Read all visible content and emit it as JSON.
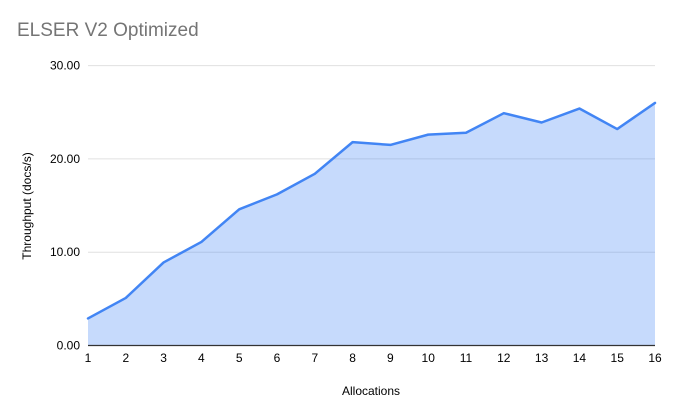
{
  "window": {
    "background": "#ffffff"
  },
  "chart_data": {
    "type": "area",
    "title": "ELSER V2 Optimized",
    "xlabel": "Allocations",
    "ylabel": "Throughput (docs/s)",
    "x": [
      1,
      2,
      3,
      4,
      5,
      6,
      7,
      8,
      9,
      10,
      11,
      12,
      13,
      14,
      15,
      16
    ],
    "values": [
      2.9,
      5.1,
      8.9,
      11.1,
      14.6,
      16.2,
      18.4,
      21.8,
      21.5,
      22.6,
      22.8,
      24.9,
      23.9,
      25.4,
      23.2,
      26.0
    ],
    "xlim": [
      1,
      16
    ],
    "ylim": [
      0,
      30
    ],
    "yticks": {
      "values": [
        0,
        10,
        20,
        30
      ],
      "labels": [
        "0.00",
        "10.00",
        "20.00",
        "30.00"
      ]
    },
    "xtick_labels": [
      "1",
      "2",
      "3",
      "4",
      "5",
      "6",
      "7",
      "8",
      "9",
      "10",
      "11",
      "12",
      "13",
      "14",
      "15",
      "16"
    ],
    "grid": true,
    "legend_position": "none",
    "colors": {
      "line": "#4285f4",
      "fill": "rgba(66,133,244,0.30)",
      "gridline": "#e0e0e0",
      "axis_line": "#333333",
      "title_text": "#757575",
      "tick_text": "#000000"
    }
  }
}
